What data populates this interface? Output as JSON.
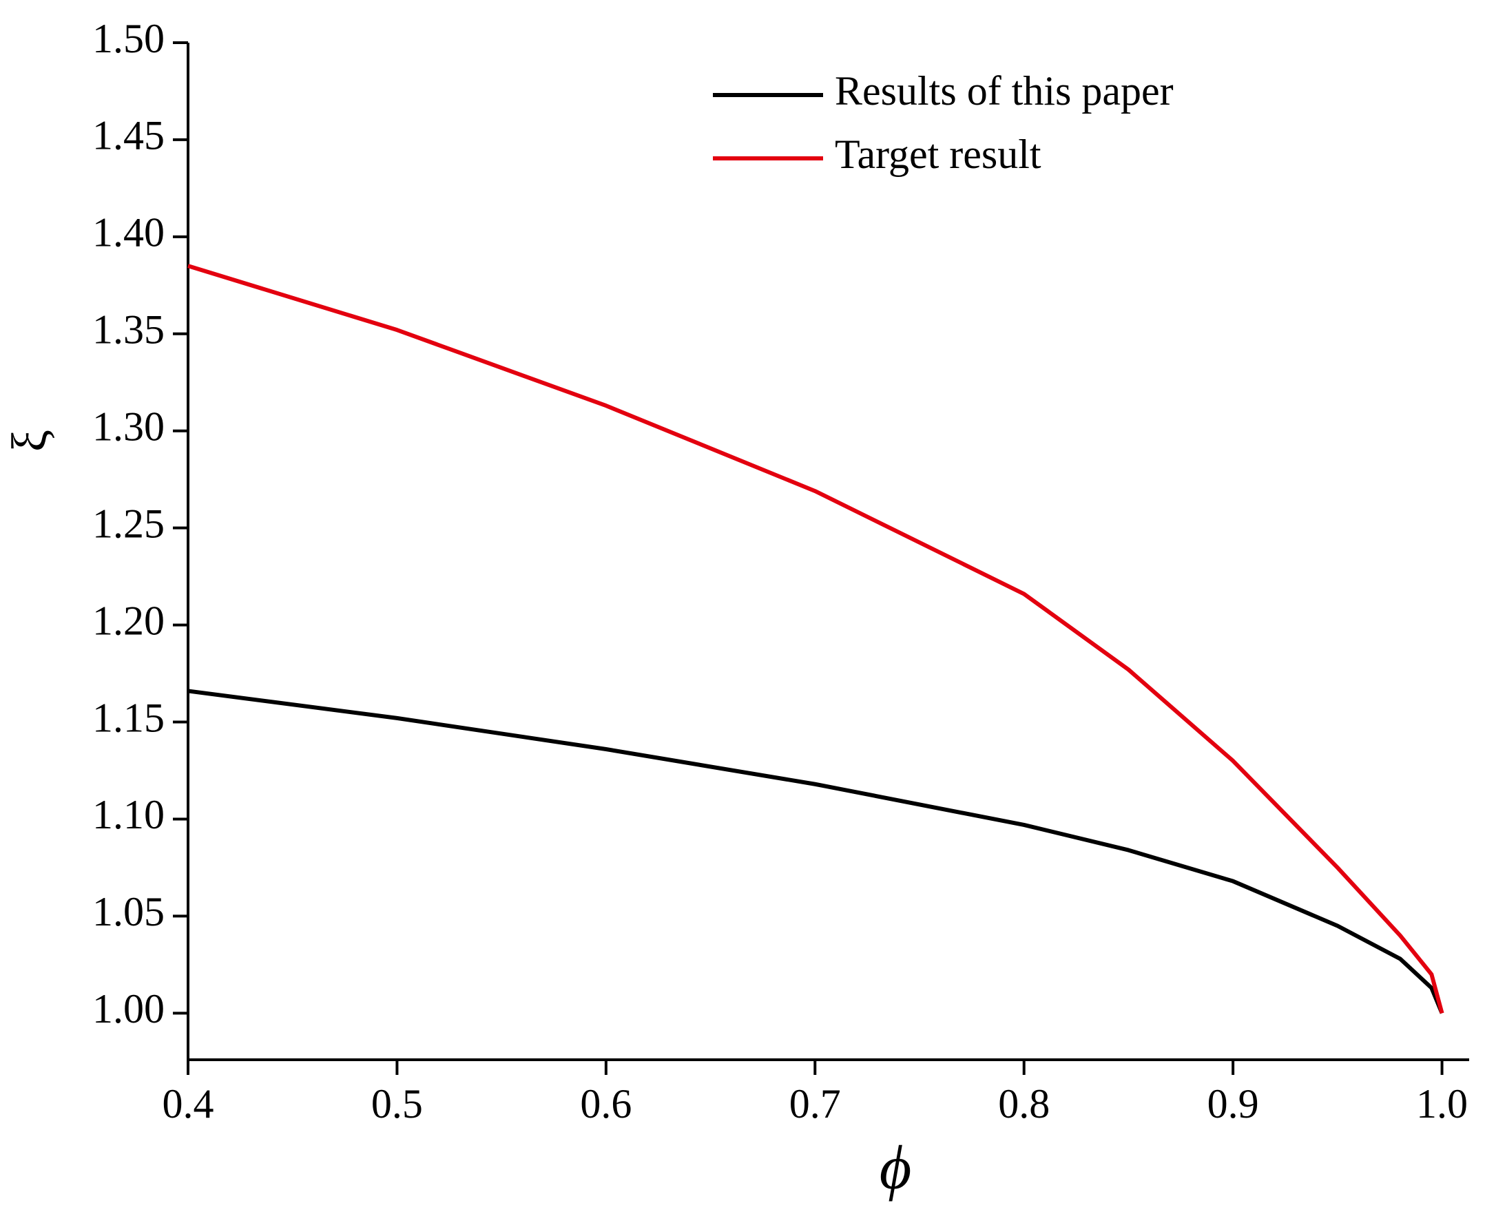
{
  "chart_data": {
    "type": "line",
    "x_label": "ϕ",
    "y_label": "ξ",
    "x": [
      0.4,
      0.5,
      0.6,
      0.7,
      0.8,
      0.85,
      0.9,
      0.95,
      0.98,
      0.995,
      1.0
    ],
    "series": [
      {
        "name": "Results of this paper",
        "color": "#000000",
        "values": [
          1.166,
          1.152,
          1.136,
          1.118,
          1.097,
          1.084,
          1.068,
          1.045,
          1.028,
          1.013,
          1.0
        ]
      },
      {
        "name": "Target result",
        "color": "#e3000f",
        "values": [
          1.385,
          1.352,
          1.313,
          1.269,
          1.216,
          1.177,
          1.13,
          1.075,
          1.04,
          1.02,
          1.0
        ]
      }
    ],
    "xlim": [
      0.4,
      1.013
    ],
    "ylim": [
      0.976,
      1.5
    ],
    "xticks": [
      0.4,
      0.5,
      0.6,
      0.7,
      0.8,
      0.9,
      {
        "value": 1.0,
        "label": "1.0"
      }
    ],
    "yticks": [
      {
        "value": 1.0,
        "label": "1.00"
      },
      {
        "value": 1.05,
        "label": "1.05"
      },
      {
        "value": 1.1,
        "label": "1.10"
      },
      {
        "value": 1.15,
        "label": "1.15"
      },
      {
        "value": 1.2,
        "label": "1.20"
      },
      {
        "value": 1.25,
        "label": "1.25"
      },
      {
        "value": 1.3,
        "label": "1.30"
      },
      {
        "value": 1.35,
        "label": "1.35"
      },
      {
        "value": 1.4,
        "label": "1.40"
      },
      {
        "value": 1.45,
        "label": "1.45"
      },
      {
        "value": 1.5,
        "label": "1.50"
      }
    ],
    "legend": "upper right",
    "grid": false
  }
}
